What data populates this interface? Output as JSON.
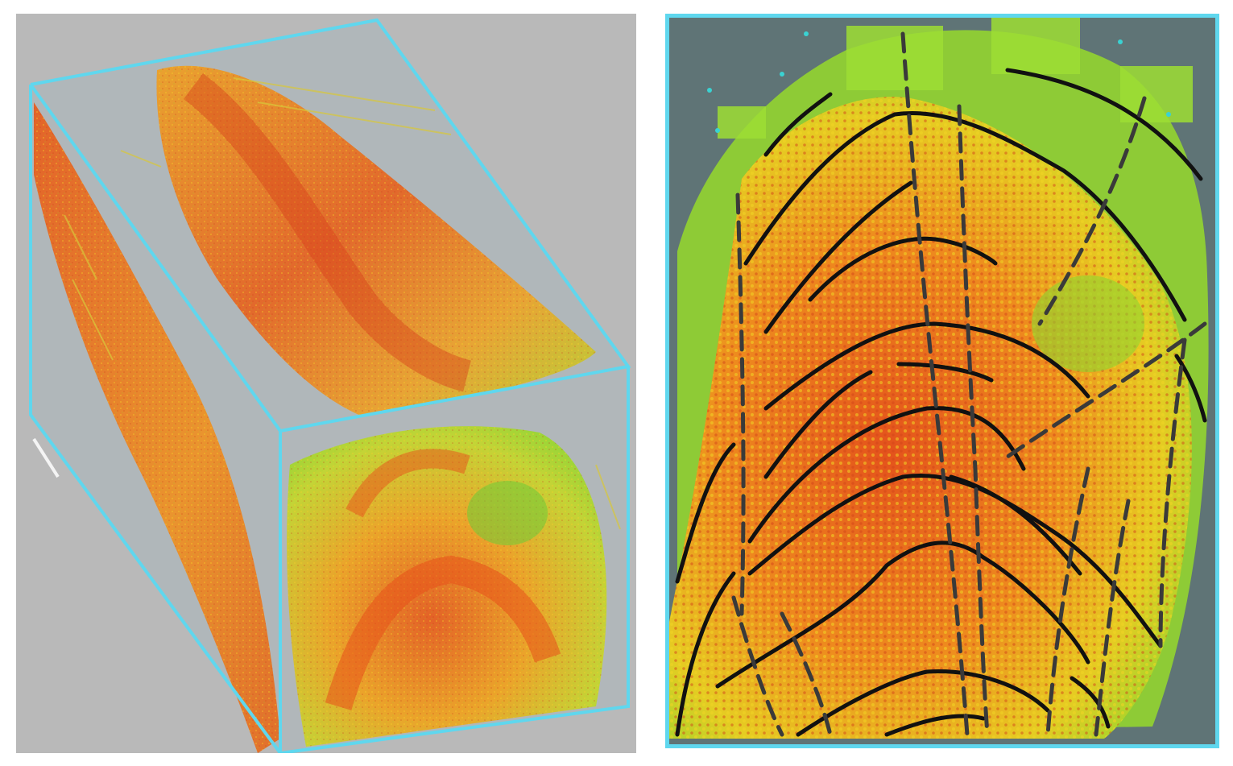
{
  "figure": {
    "left_panel": {
      "description_name": "3d-point-cloud-block",
      "colors": {
        "background": "#b9b9b9",
        "box_edges": "#5fd7ee",
        "box_faces": "#a9b6bc",
        "hot": "#e8501e",
        "warm": "#f08a1c",
        "mid": "#e8d020",
        "cool": "#8ed82c",
        "cold": "#3bc45a"
      }
    },
    "right_panel": {
      "description_name": "folded-layers-interpretation",
      "colors": {
        "background": "#5f7476",
        "frame": "#5fd7ee",
        "horizon_lines": "#111111",
        "fault_lines": "#3a3a3a"
      }
    }
  }
}
